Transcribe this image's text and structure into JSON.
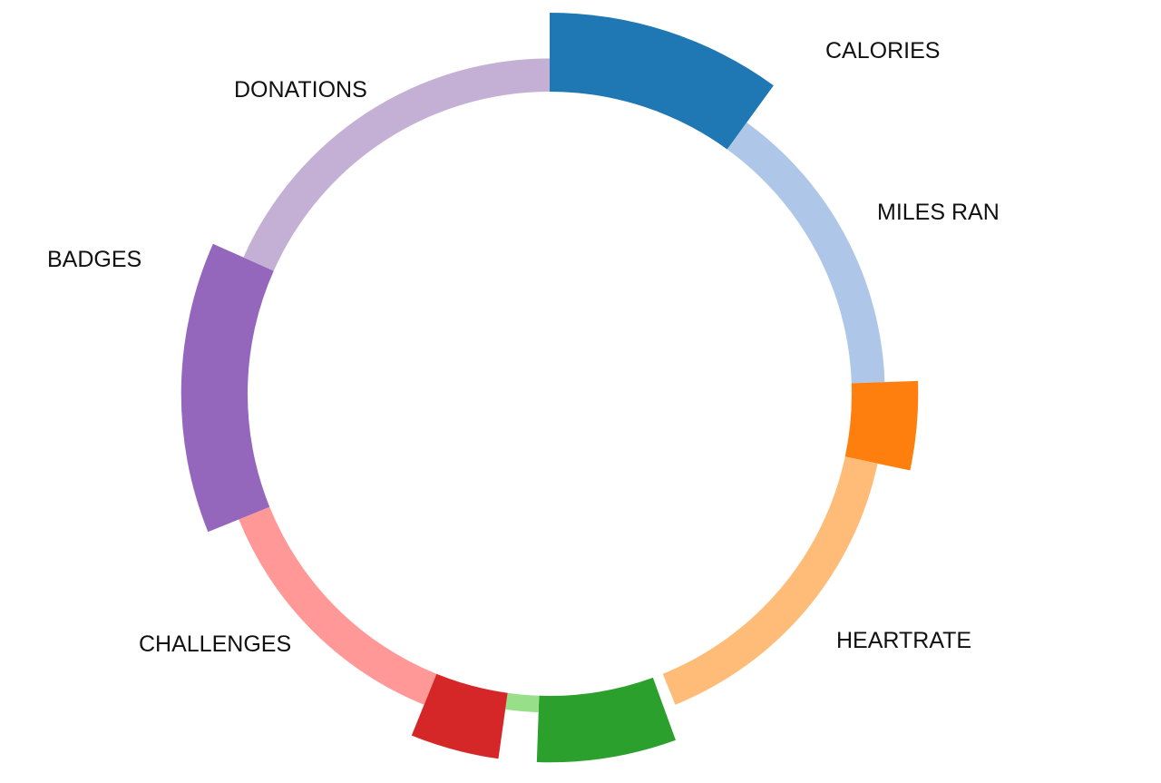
{
  "chart_data": {
    "type": "radial-bar",
    "segments": [
      {
        "label": "CALORIES",
        "value": 95,
        "start_deg": 0,
        "end_deg": 36,
        "color": "#1f77b4"
      },
      {
        "label": "MILES RAN",
        "value": 40,
        "start_deg": 36,
        "end_deg": 88,
        "color": "#aec7e8"
      },
      {
        "label": "",
        "value": 80,
        "start_deg": 88,
        "end_deg": 102,
        "color": "#ff7f0e"
      },
      {
        "label": "HEARTRATE",
        "value": 40,
        "start_deg": 102,
        "end_deg": 158,
        "color": "#ffbb78"
      },
      {
        "label": "",
        "value": 80,
        "start_deg": 160,
        "end_deg": 182,
        "color": "#2ca02c"
      },
      {
        "label": "",
        "value": 20,
        "start_deg": 182,
        "end_deg": 188,
        "color": "#98df8a"
      },
      {
        "label": "",
        "value": 80,
        "start_deg": 188,
        "end_deg": 202,
        "color": "#d62728"
      },
      {
        "label": "CHALLENGES",
        "value": 40,
        "start_deg": 202,
        "end_deg": 248,
        "color": "#ff9896"
      },
      {
        "label": "BADGES",
        "value": 80,
        "start_deg": 248,
        "end_deg": 294,
        "color": "#9467bd"
      },
      {
        "label": "DONATIONS",
        "value": 40,
        "start_deg": 294,
        "end_deg": 360,
        "color": "#c5b0d5"
      }
    ]
  }
}
